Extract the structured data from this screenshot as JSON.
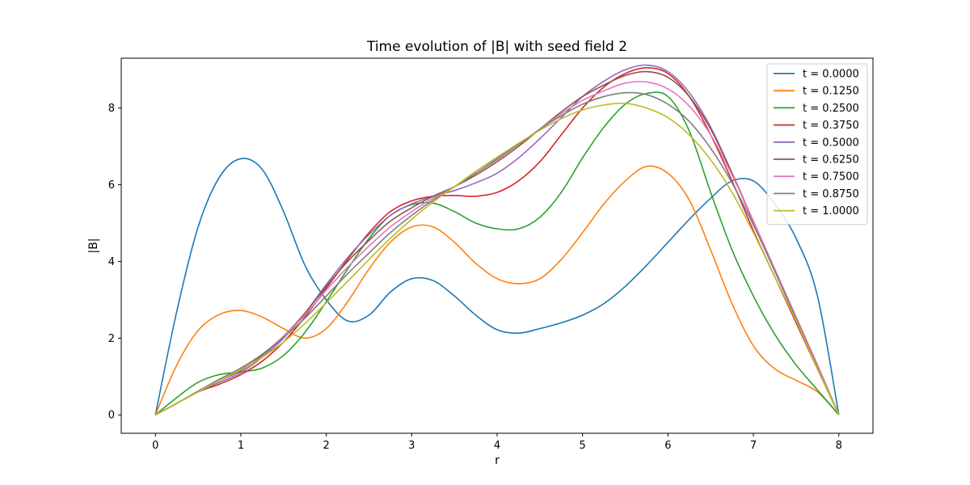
{
  "chart_data": {
    "type": "line",
    "title": "Time evolution of |B| with seed field 2",
    "xlabel": "r",
    "ylabel": "|B|",
    "xlim": [
      -0.4,
      8.4
    ],
    "ylim": [
      -0.48,
      9.3
    ],
    "xticks": [
      0,
      1,
      2,
      3,
      4,
      5,
      6,
      7,
      8
    ],
    "yticks": [
      0,
      2,
      4,
      6,
      8
    ],
    "grid": false,
    "legend_position": "top-right",
    "series": [
      {
        "name": "t = 0.0000",
        "color": "#1f77b4",
        "points": [
          [
            0,
            0
          ],
          [
            0.25,
            2.7
          ],
          [
            0.5,
            4.9
          ],
          [
            0.75,
            6.2
          ],
          [
            1.0,
            6.68
          ],
          [
            1.25,
            6.4
          ],
          [
            1.5,
            5.3
          ],
          [
            1.75,
            3.9
          ],
          [
            2.0,
            3.0
          ],
          [
            2.25,
            2.45
          ],
          [
            2.5,
            2.6
          ],
          [
            2.75,
            3.2
          ],
          [
            3.0,
            3.55
          ],
          [
            3.25,
            3.5
          ],
          [
            3.5,
            3.1
          ],
          [
            3.75,
            2.6
          ],
          [
            4.0,
            2.22
          ],
          [
            4.25,
            2.13
          ],
          [
            4.5,
            2.25
          ],
          [
            4.75,
            2.4
          ],
          [
            5.0,
            2.6
          ],
          [
            5.25,
            2.9
          ],
          [
            5.5,
            3.35
          ],
          [
            5.75,
            3.9
          ],
          [
            6.0,
            4.5
          ],
          [
            6.25,
            5.1
          ],
          [
            6.5,
            5.65
          ],
          [
            6.75,
            6.1
          ],
          [
            7.0,
            6.1
          ],
          [
            7.25,
            5.5
          ],
          [
            7.5,
            4.6
          ],
          [
            7.75,
            3.1
          ],
          [
            8.0,
            0
          ]
        ]
      },
      {
        "name": "t = 0.1250",
        "color": "#ff7f0e",
        "points": [
          [
            0,
            0
          ],
          [
            0.25,
            1.3
          ],
          [
            0.5,
            2.2
          ],
          [
            0.75,
            2.62
          ],
          [
            1.0,
            2.72
          ],
          [
            1.25,
            2.55
          ],
          [
            1.5,
            2.25
          ],
          [
            1.75,
            2.0
          ],
          [
            2.0,
            2.25
          ],
          [
            2.25,
            2.95
          ],
          [
            2.5,
            3.8
          ],
          [
            2.75,
            4.5
          ],
          [
            3.0,
            4.9
          ],
          [
            3.25,
            4.9
          ],
          [
            3.5,
            4.5
          ],
          [
            3.75,
            3.95
          ],
          [
            4.0,
            3.55
          ],
          [
            4.25,
            3.42
          ],
          [
            4.5,
            3.55
          ],
          [
            4.75,
            4.05
          ],
          [
            5.0,
            4.75
          ],
          [
            5.25,
            5.5
          ],
          [
            5.5,
            6.1
          ],
          [
            5.75,
            6.48
          ],
          [
            6.0,
            6.3
          ],
          [
            6.25,
            5.6
          ],
          [
            6.5,
            4.3
          ],
          [
            6.75,
            2.9
          ],
          [
            7.0,
            1.8
          ],
          [
            7.25,
            1.2
          ],
          [
            7.5,
            0.9
          ],
          [
            7.75,
            0.6
          ],
          [
            8.0,
            0
          ]
        ]
      },
      {
        "name": "t = 0.2500",
        "color": "#2ca02c",
        "points": [
          [
            0,
            0
          ],
          [
            0.25,
            0.45
          ],
          [
            0.5,
            0.85
          ],
          [
            0.75,
            1.05
          ],
          [
            1.0,
            1.12
          ],
          [
            1.25,
            1.22
          ],
          [
            1.5,
            1.55
          ],
          [
            1.75,
            2.15
          ],
          [
            2.0,
            2.95
          ],
          [
            2.25,
            3.8
          ],
          [
            2.5,
            4.6
          ],
          [
            2.75,
            5.2
          ],
          [
            3.0,
            5.48
          ],
          [
            3.25,
            5.52
          ],
          [
            3.5,
            5.3
          ],
          [
            3.75,
            5.0
          ],
          [
            4.0,
            4.85
          ],
          [
            4.25,
            4.85
          ],
          [
            4.5,
            5.15
          ],
          [
            4.75,
            5.8
          ],
          [
            5.0,
            6.7
          ],
          [
            5.25,
            7.5
          ],
          [
            5.5,
            8.1
          ],
          [
            5.75,
            8.38
          ],
          [
            6.0,
            8.3
          ],
          [
            6.25,
            7.4
          ],
          [
            6.5,
            5.8
          ],
          [
            6.75,
            4.3
          ],
          [
            7.0,
            3.1
          ],
          [
            7.25,
            2.1
          ],
          [
            7.5,
            1.3
          ],
          [
            7.75,
            0.65
          ],
          [
            8.0,
            0
          ]
        ]
      },
      {
        "name": "t = 0.3750",
        "color": "#d62728",
        "points": [
          [
            0,
            0
          ],
          [
            0.25,
            0.3
          ],
          [
            0.5,
            0.6
          ],
          [
            0.75,
            0.8
          ],
          [
            1.0,
            1.05
          ],
          [
            1.25,
            1.4
          ],
          [
            1.5,
            1.9
          ],
          [
            1.75,
            2.55
          ],
          [
            2.0,
            3.3
          ],
          [
            2.25,
            4.05
          ],
          [
            2.5,
            4.75
          ],
          [
            2.75,
            5.3
          ],
          [
            3.0,
            5.58
          ],
          [
            3.25,
            5.7
          ],
          [
            3.5,
            5.72
          ],
          [
            3.75,
            5.7
          ],
          [
            4.0,
            5.8
          ],
          [
            4.25,
            6.1
          ],
          [
            4.5,
            6.6
          ],
          [
            4.75,
            7.3
          ],
          [
            5.0,
            8.0
          ],
          [
            5.25,
            8.55
          ],
          [
            5.5,
            8.9
          ],
          [
            5.75,
            9.05
          ],
          [
            6.0,
            8.9
          ],
          [
            6.25,
            8.3
          ],
          [
            6.5,
            7.3
          ],
          [
            6.75,
            6.1
          ],
          [
            7.0,
            4.8
          ],
          [
            7.25,
            3.6
          ],
          [
            7.5,
            2.4
          ],
          [
            7.75,
            1.2
          ],
          [
            8.0,
            0
          ]
        ]
      },
      {
        "name": "t = 0.5000",
        "color": "#9467bd",
        "points": [
          [
            0,
            0
          ],
          [
            0.25,
            0.3
          ],
          [
            0.5,
            0.6
          ],
          [
            0.75,
            0.85
          ],
          [
            1.0,
            1.1
          ],
          [
            1.25,
            1.5
          ],
          [
            1.5,
            2.0
          ],
          [
            1.75,
            2.65
          ],
          [
            2.0,
            3.4
          ],
          [
            2.25,
            4.1
          ],
          [
            2.5,
            4.7
          ],
          [
            2.75,
            5.2
          ],
          [
            3.0,
            5.5
          ],
          [
            3.25,
            5.7
          ],
          [
            3.5,
            5.85
          ],
          [
            3.75,
            6.05
          ],
          [
            4.0,
            6.3
          ],
          [
            4.25,
            6.7
          ],
          [
            4.5,
            7.2
          ],
          [
            4.75,
            7.75
          ],
          [
            5.0,
            8.3
          ],
          [
            5.25,
            8.7
          ],
          [
            5.5,
            9.0
          ],
          [
            5.75,
            9.12
          ],
          [
            6.0,
            8.95
          ],
          [
            6.25,
            8.4
          ],
          [
            6.5,
            7.5
          ],
          [
            6.75,
            6.3
          ],
          [
            7.0,
            5.0
          ],
          [
            7.25,
            3.75
          ],
          [
            7.5,
            2.5
          ],
          [
            7.75,
            1.25
          ],
          [
            8.0,
            0
          ]
        ]
      },
      {
        "name": "t = 0.6250",
        "color": "#8c564b",
        "points": [
          [
            0,
            0
          ],
          [
            0.25,
            0.3
          ],
          [
            0.5,
            0.6
          ],
          [
            0.75,
            0.9
          ],
          [
            1.0,
            1.15
          ],
          [
            1.25,
            1.55
          ],
          [
            1.5,
            2.05
          ],
          [
            1.75,
            2.65
          ],
          [
            2.0,
            3.35
          ],
          [
            2.25,
            4.0
          ],
          [
            2.5,
            4.55
          ],
          [
            2.75,
            5.05
          ],
          [
            3.0,
            5.4
          ],
          [
            3.25,
            5.7
          ],
          [
            3.5,
            5.95
          ],
          [
            3.75,
            6.25
          ],
          [
            4.0,
            6.6
          ],
          [
            4.25,
            7.0
          ],
          [
            4.5,
            7.45
          ],
          [
            4.75,
            7.9
          ],
          [
            5.0,
            8.3
          ],
          [
            5.25,
            8.6
          ],
          [
            5.5,
            8.85
          ],
          [
            5.75,
            8.95
          ],
          [
            6.0,
            8.8
          ],
          [
            6.25,
            8.3
          ],
          [
            6.5,
            7.45
          ],
          [
            6.75,
            6.3
          ],
          [
            7.0,
            5.05
          ],
          [
            7.25,
            3.8
          ],
          [
            7.5,
            2.55
          ],
          [
            7.75,
            1.3
          ],
          [
            8.0,
            0
          ]
        ]
      },
      {
        "name": "t = 0.7500",
        "color": "#e377c2",
        "points": [
          [
            0,
            0
          ],
          [
            0.25,
            0.3
          ],
          [
            0.5,
            0.62
          ],
          [
            0.75,
            0.92
          ],
          [
            1.0,
            1.2
          ],
          [
            1.25,
            1.58
          ],
          [
            1.5,
            2.05
          ],
          [
            1.75,
            2.6
          ],
          [
            2.0,
            3.25
          ],
          [
            2.25,
            3.85
          ],
          [
            2.5,
            4.4
          ],
          [
            2.75,
            4.9
          ],
          [
            3.0,
            5.3
          ],
          [
            3.25,
            5.65
          ],
          [
            3.5,
            5.95
          ],
          [
            3.75,
            6.3
          ],
          [
            4.0,
            6.65
          ],
          [
            4.25,
            7.05
          ],
          [
            4.5,
            7.45
          ],
          [
            4.75,
            7.85
          ],
          [
            5.0,
            8.2
          ],
          [
            5.25,
            8.45
          ],
          [
            5.5,
            8.65
          ],
          [
            5.75,
            8.68
          ],
          [
            6.0,
            8.5
          ],
          [
            6.25,
            8.05
          ],
          [
            6.5,
            7.3
          ],
          [
            6.75,
            6.25
          ],
          [
            7.0,
            5.05
          ],
          [
            7.25,
            3.8
          ],
          [
            7.5,
            2.55
          ],
          [
            7.75,
            1.3
          ],
          [
            8.0,
            0
          ]
        ]
      },
      {
        "name": "t = 0.8750",
        "color": "#7f7f7f",
        "points": [
          [
            0,
            0
          ],
          [
            0.25,
            0.3
          ],
          [
            0.5,
            0.62
          ],
          [
            0.75,
            0.93
          ],
          [
            1.0,
            1.22
          ],
          [
            1.25,
            1.58
          ],
          [
            1.5,
            2.02
          ],
          [
            1.75,
            2.52
          ],
          [
            2.0,
            3.1
          ],
          [
            2.25,
            3.68
          ],
          [
            2.5,
            4.22
          ],
          [
            2.75,
            4.75
          ],
          [
            3.0,
            5.2
          ],
          [
            3.25,
            5.6
          ],
          [
            3.5,
            5.95
          ],
          [
            3.75,
            6.3
          ],
          [
            4.0,
            6.68
          ],
          [
            4.25,
            7.05
          ],
          [
            4.5,
            7.45
          ],
          [
            4.75,
            7.8
          ],
          [
            5.0,
            8.1
          ],
          [
            5.25,
            8.3
          ],
          [
            5.5,
            8.4
          ],
          [
            5.75,
            8.35
          ],
          [
            6.0,
            8.1
          ],
          [
            6.25,
            7.65
          ],
          [
            6.5,
            6.95
          ],
          [
            6.75,
            6.05
          ],
          [
            7.0,
            4.95
          ],
          [
            7.25,
            3.75
          ],
          [
            7.5,
            2.5
          ],
          [
            7.75,
            1.25
          ],
          [
            8.0,
            0
          ]
        ]
      },
      {
        "name": "t = 1.0000",
        "color": "#bcbd22",
        "points": [
          [
            0,
            0
          ],
          [
            0.25,
            0.3
          ],
          [
            0.5,
            0.6
          ],
          [
            0.75,
            0.9
          ],
          [
            1.0,
            1.18
          ],
          [
            1.25,
            1.5
          ],
          [
            1.5,
            1.9
          ],
          [
            1.75,
            2.38
          ],
          [
            2.0,
            2.92
          ],
          [
            2.25,
            3.48
          ],
          [
            2.5,
            4.05
          ],
          [
            2.75,
            4.6
          ],
          [
            3.0,
            5.1
          ],
          [
            3.25,
            5.55
          ],
          [
            3.5,
            5.95
          ],
          [
            3.75,
            6.35
          ],
          [
            4.0,
            6.72
          ],
          [
            4.25,
            7.08
          ],
          [
            4.5,
            7.42
          ],
          [
            4.75,
            7.72
          ],
          [
            5.0,
            7.95
          ],
          [
            5.25,
            8.08
          ],
          [
            5.5,
            8.12
          ],
          [
            5.75,
            8.0
          ],
          [
            6.0,
            7.75
          ],
          [
            6.25,
            7.3
          ],
          [
            6.5,
            6.65
          ],
          [
            6.75,
            5.8
          ],
          [
            7.0,
            4.75
          ],
          [
            7.25,
            3.6
          ],
          [
            7.5,
            2.45
          ],
          [
            7.75,
            1.22
          ],
          [
            8.0,
            0
          ]
        ]
      }
    ]
  }
}
